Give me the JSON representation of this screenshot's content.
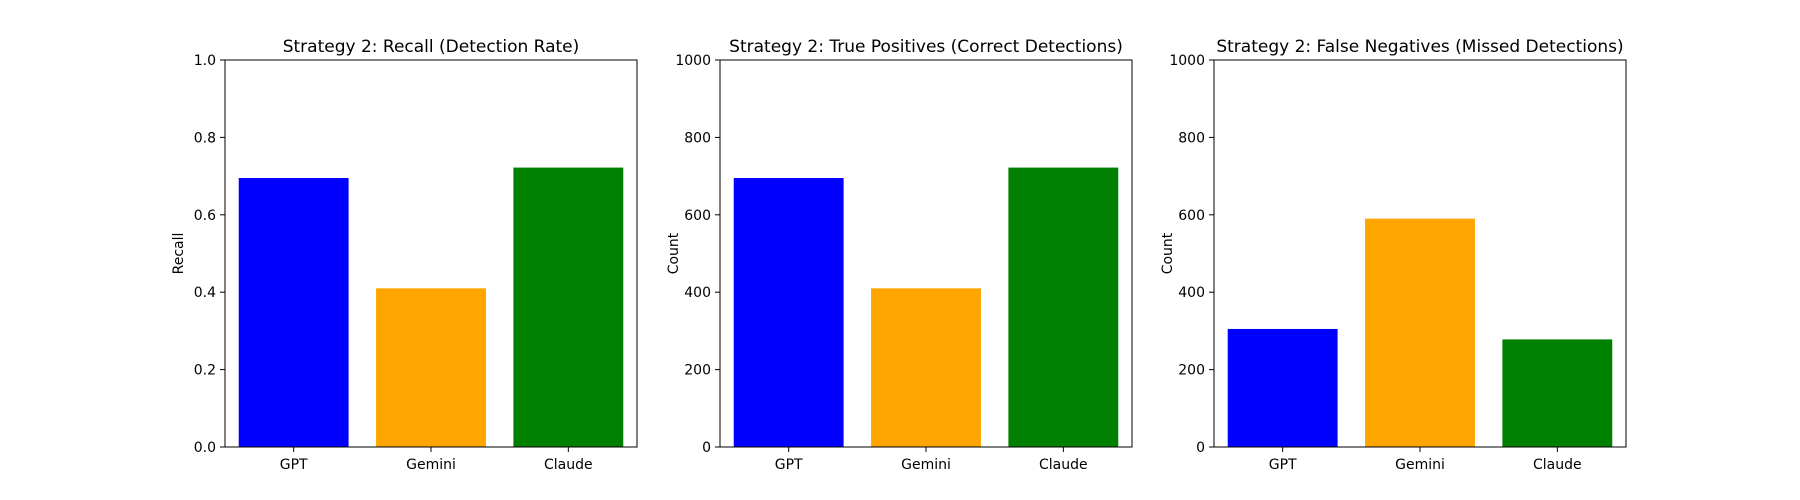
{
  "chart_data": [
    {
      "type": "bar",
      "title": "Strategy 2: Recall (Detection Rate)",
      "xlabel": "",
      "ylabel": "Recall",
      "categories": [
        "GPT",
        "Gemini",
        "Claude"
      ],
      "values": [
        0.695,
        0.41,
        0.722
      ],
      "colors": [
        "#0000ff",
        "#ffa500",
        "#008000"
      ],
      "ylim": [
        0,
        1.0
      ],
      "yticks": [
        0,
        0.2,
        0.4,
        0.6,
        0.8,
        1.0
      ],
      "ytick_labels": [
        "0.0",
        "0.2",
        "0.4",
        "0.6",
        "0.8",
        "1.0"
      ],
      "grid": false
    },
    {
      "type": "bar",
      "title": "Strategy 2: True Positives (Correct Detections)",
      "xlabel": "",
      "ylabel": "Count",
      "categories": [
        "GPT",
        "Gemini",
        "Claude"
      ],
      "values": [
        695,
        410,
        722
      ],
      "colors": [
        "#0000ff",
        "#ffa500",
        "#008000"
      ],
      "ylim": [
        0,
        1000
      ],
      "yticks": [
        0,
        200,
        400,
        600,
        800,
        1000
      ],
      "ytick_labels": [
        "0",
        "200",
        "400",
        "600",
        "800",
        "1000"
      ],
      "grid": false
    },
    {
      "type": "bar",
      "title": "Strategy 2: False Negatives (Missed Detections)",
      "xlabel": "",
      "ylabel": "Count",
      "categories": [
        "GPT",
        "Gemini",
        "Claude"
      ],
      "values": [
        305,
        590,
        278
      ],
      "colors": [
        "#0000ff",
        "#ffa500",
        "#008000"
      ],
      "ylim": [
        0,
        1000
      ],
      "yticks": [
        0,
        200,
        400,
        600,
        800,
        1000
      ],
      "ytick_labels": [
        "0",
        "200",
        "400",
        "600",
        "800",
        "1000"
      ],
      "grid": false
    }
  ]
}
